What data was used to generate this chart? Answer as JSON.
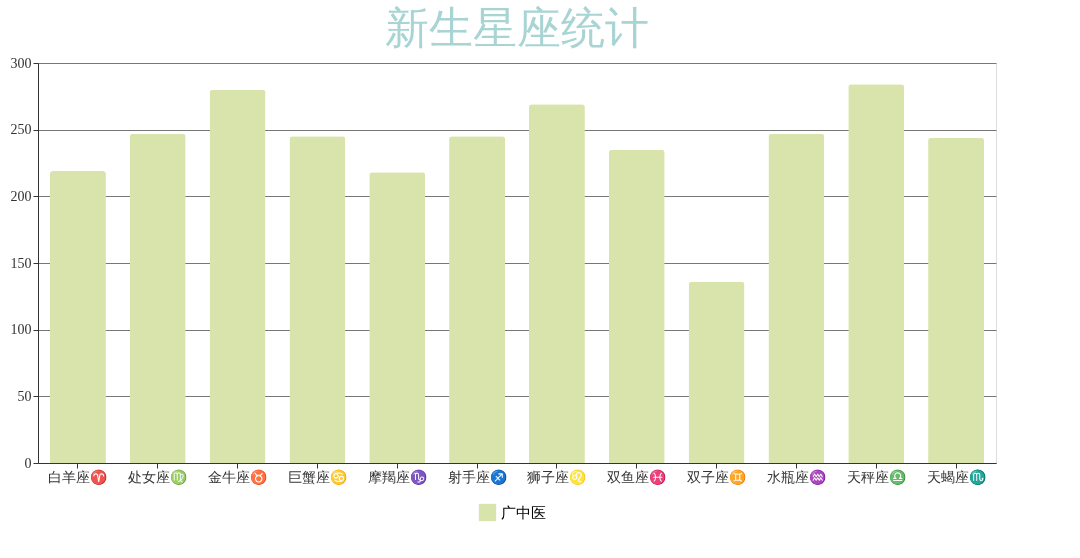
{
  "chart_data": {
    "type": "bar",
    "title": "新生星座统计",
    "categories": [
      "白羊座♈",
      "处女座♍",
      "金牛座♉",
      "巨蟹座♋",
      "摩羯座♑",
      "射手座♐",
      "狮子座♌",
      "双鱼座♓",
      "双子座♊",
      "水瓶座♒",
      "天秤座♎",
      "天蝎座♏"
    ],
    "series": [
      {
        "name": "广中医",
        "color": "#d9e4ac",
        "values": [
          219,
          247,
          280,
          245,
          218,
          245,
          269,
          235,
          136,
          247,
          284,
          244
        ]
      }
    ],
    "ylim": [
      0,
      300
    ],
    "yticks": [
      0,
      50,
      100,
      150,
      200,
      250,
      300
    ],
    "grid": "y",
    "legend": "bottom"
  }
}
